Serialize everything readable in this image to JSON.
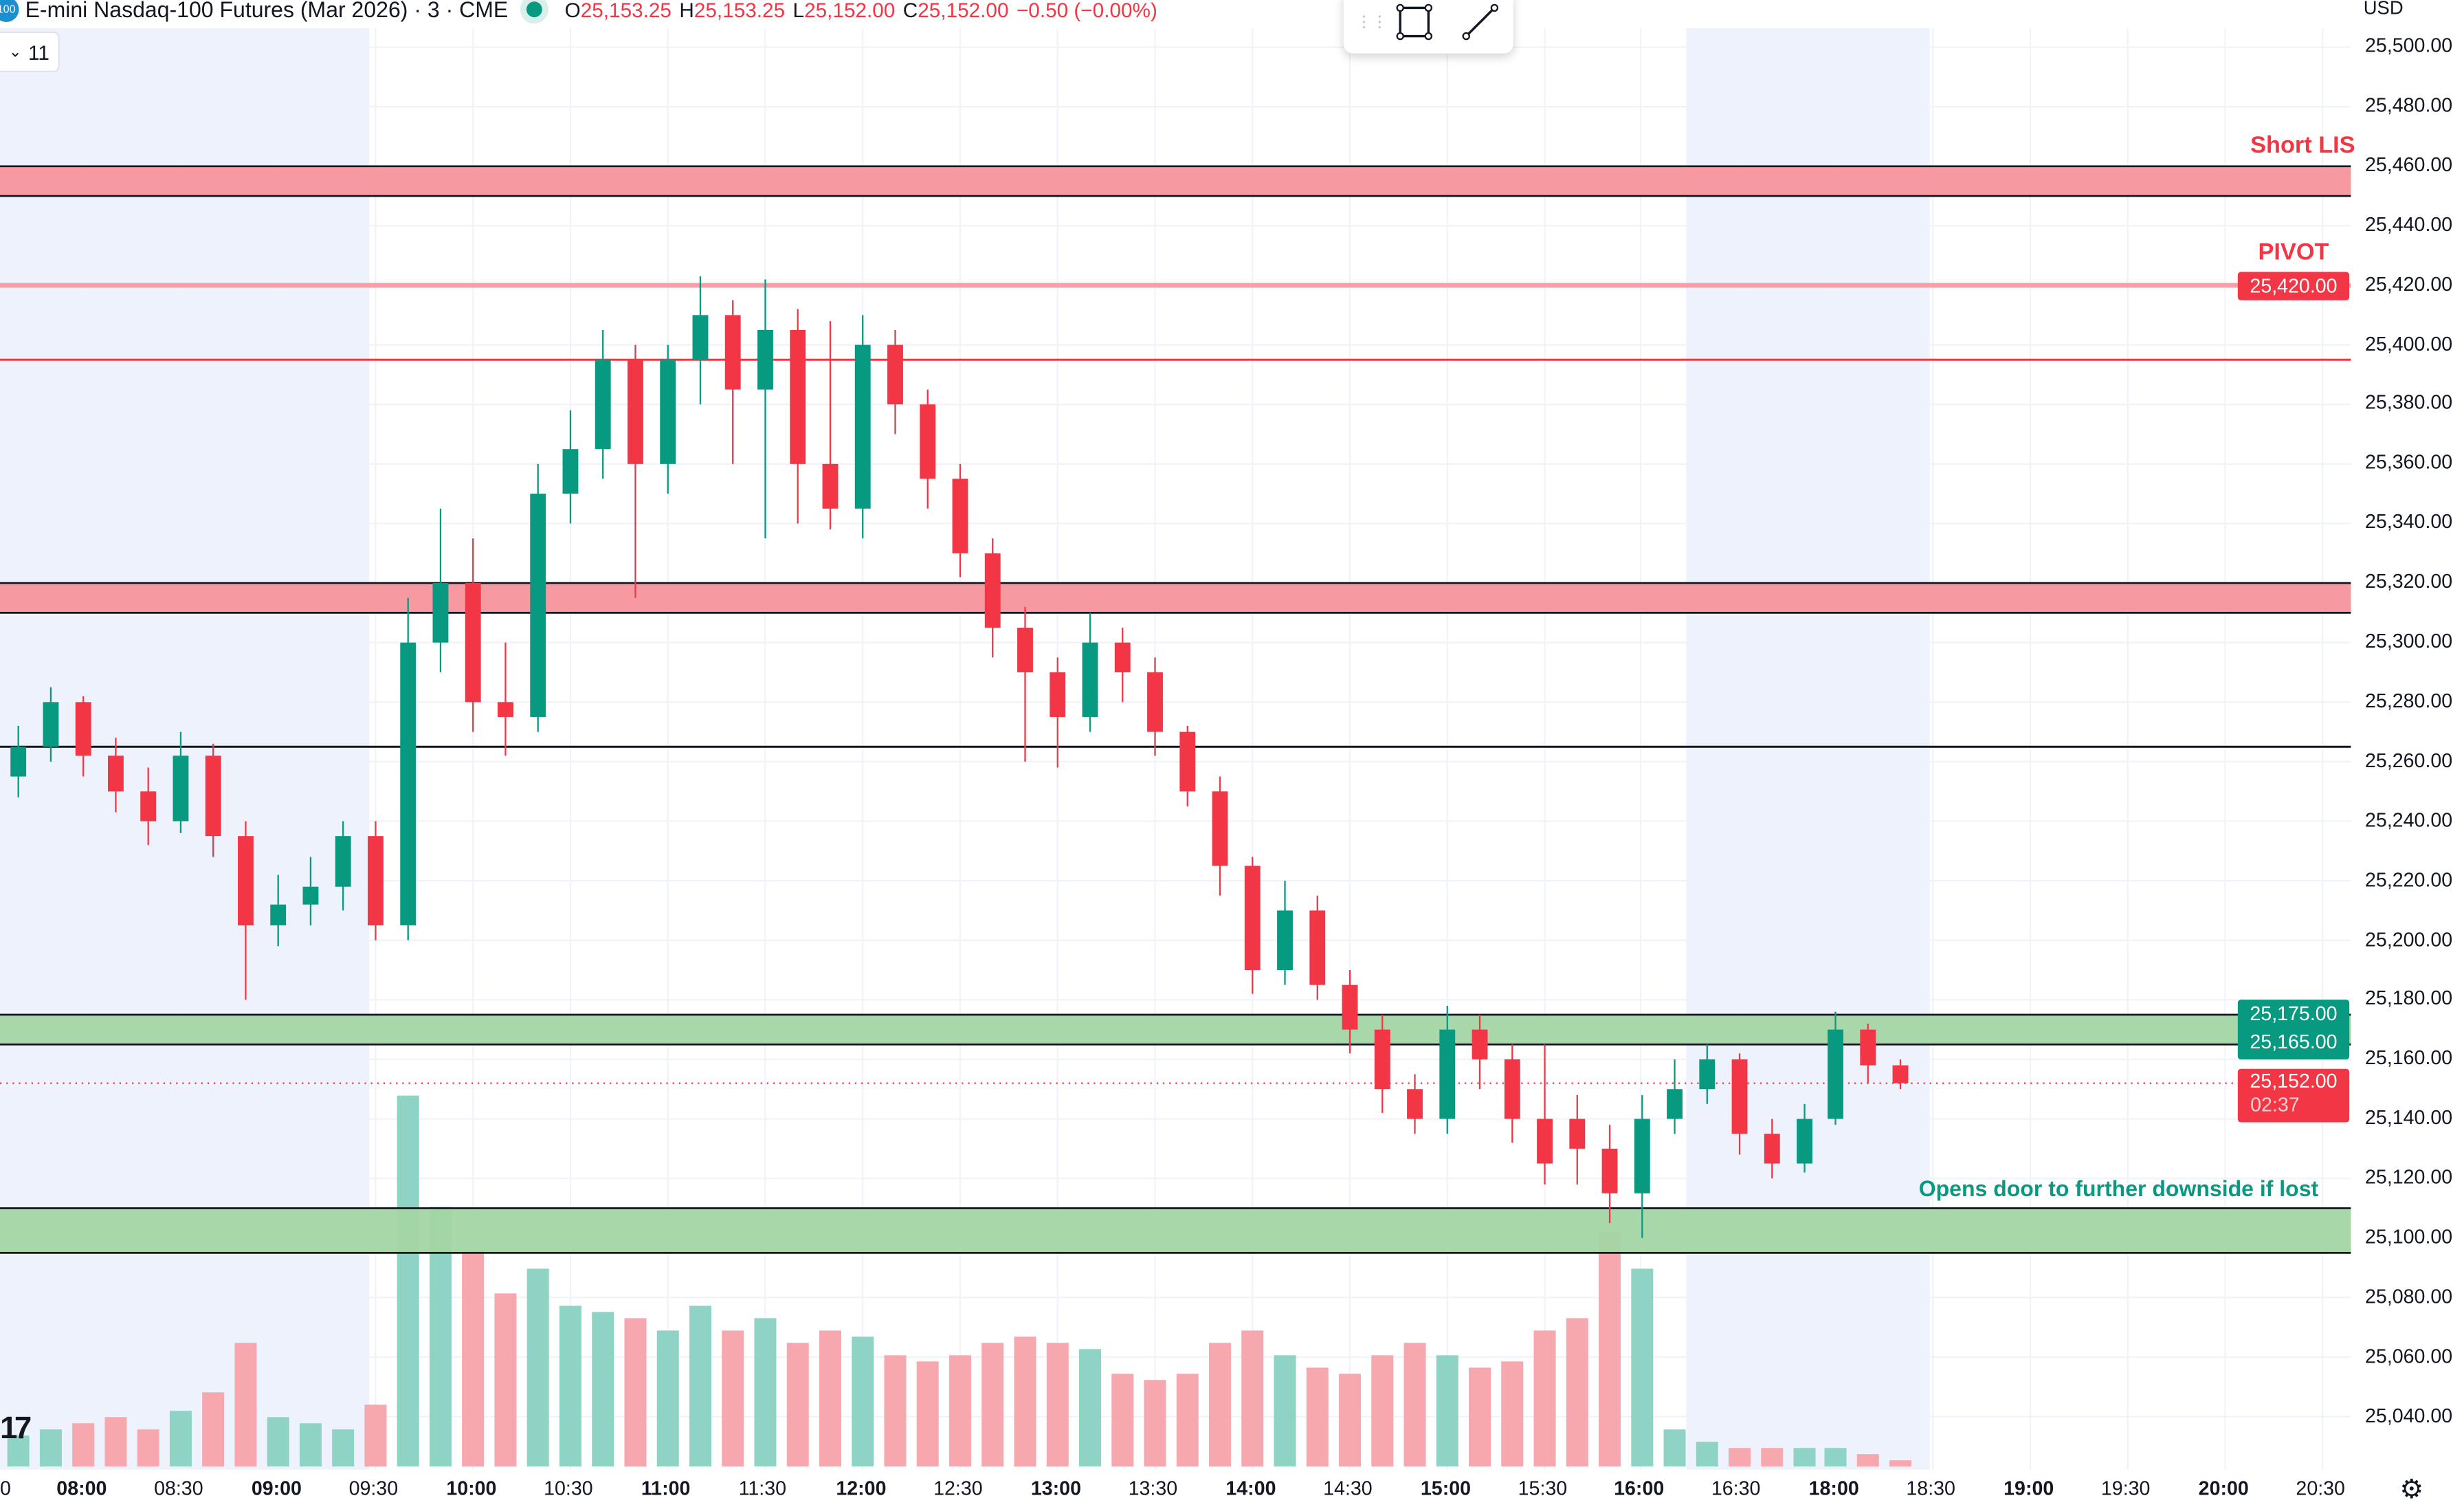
{
  "header": {
    "symbol_badge": "100",
    "title": "E-mini Nasdaq-100 Futures (Mar 2026) · 3 · CME",
    "ohlc": {
      "o_label": "O",
      "o": "25,153.25",
      "h_label": "H",
      "h": "25,153.25",
      "l_label": "L",
      "l": "25,152.00",
      "c_label": "C",
      "c": "25,152.00",
      "change": "−0.50 (−0.00%)"
    },
    "collapsed_indicators": "11"
  },
  "currency": "USD",
  "colors": {
    "up": "#089981",
    "down": "#f23645",
    "up_volume": "#8fd3c5",
    "down_volume": "#f7a8ae",
    "red_zone": "#f5949c",
    "green_zone": "#a3d6a4",
    "session_shade": "#eef2fd"
  },
  "annotations": {
    "short_lis": "Short LIS",
    "pivot": "PIVOT",
    "downside_note": "Opens door to further downside if lost"
  },
  "price_badges": {
    "pivot": "25,420.00",
    "green_top": "25,175.00",
    "green_bottom": "25,165.00",
    "last": "25,152.00",
    "countdown": "02:37"
  },
  "chart_data": {
    "type": "candlestick",
    "title": "E-mini Nasdaq-100 Futures (Mar 2026) · 3 · CME",
    "ylim": [
      25030,
      25505
    ],
    "y_ticks": [
      "25,500.00",
      "25,480.00",
      "25,460.00",
      "25,440.00",
      "25,420.00",
      "25,400.00",
      "25,380.00",
      "25,360.00",
      "25,340.00",
      "25,320.00",
      "25,300.00",
      "25,280.00",
      "25,260.00",
      "25,240.00",
      "25,220.00",
      "25,200.00",
      "25,180.00",
      "25,160.00",
      "25,140.00",
      "25,120.00",
      "25,100.00",
      "25,080.00",
      "25,060.00",
      "25,040.00"
    ],
    "x_ticks": [
      "0",
      "08:00",
      "08:30",
      "09:00",
      "09:30",
      "10:00",
      "10:30",
      "11:00",
      "11:30",
      "12:00",
      "12:30",
      "13:00",
      "13:30",
      "14:00",
      "14:30",
      "15:00",
      "15:30",
      "16:00",
      "16:30",
      "18:00",
      "18:30",
      "19:00",
      "19:30",
      "20:00",
      "20:30"
    ],
    "levels": [
      {
        "kind": "zone",
        "color": "red",
        "from": 25450,
        "to": 25460,
        "label": "Short LIS"
      },
      {
        "kind": "line",
        "color": "pink",
        "price": 25420,
        "label": "PIVOT"
      },
      {
        "kind": "line",
        "color": "red",
        "price": 25395
      },
      {
        "kind": "zone",
        "color": "red",
        "from": 25310,
        "to": 25320
      },
      {
        "kind": "line",
        "color": "black",
        "price": 25265
      },
      {
        "kind": "zone",
        "color": "green",
        "from": 25165,
        "to": 25175
      },
      {
        "kind": "zone",
        "color": "green",
        "from": 25095,
        "to": 25110,
        "label": "Opens door to further downside if lost"
      },
      {
        "kind": "last",
        "price": 25152
      }
    ],
    "candles": [
      [
        "07:40",
        25255,
        25272,
        25248,
        25265,
        5
      ],
      [
        "07:50",
        25265,
        25285,
        25260,
        25280,
        6
      ],
      [
        "08:00",
        25280,
        25282,
        25255,
        25262,
        7
      ],
      [
        "08:10",
        25262,
        25268,
        25243,
        25250,
        8
      ],
      [
        "08:20",
        25250,
        25258,
        25232,
        25240,
        6
      ],
      [
        "08:30",
        25240,
        25270,
        25236,
        25262,
        9
      ],
      [
        "08:40",
        25262,
        25266,
        25228,
        25235,
        12
      ],
      [
        "08:50",
        25235,
        25240,
        25180,
        25205,
        20
      ],
      [
        "09:00",
        25205,
        25222,
        25198,
        25212,
        8
      ],
      [
        "09:10",
        25212,
        25228,
        25205,
        25218,
        7
      ],
      [
        "09:20",
        25218,
        25240,
        25210,
        25235,
        6
      ],
      [
        "09:30",
        25235,
        25240,
        25200,
        25205,
        10
      ],
      [
        "09:40",
        25205,
        25315,
        25200,
        25300,
        60
      ],
      [
        "09:50",
        25300,
        25345,
        25290,
        25320,
        42
      ],
      [
        "10:00",
        25320,
        25335,
        25270,
        25280,
        35
      ],
      [
        "10:10",
        25280,
        25300,
        25262,
        25275,
        28
      ],
      [
        "10:20",
        25275,
        25360,
        25270,
        25350,
        32
      ],
      [
        "10:30",
        25350,
        25378,
        25340,
        25365,
        26
      ],
      [
        "10:40",
        25365,
        25405,
        25355,
        25395,
        25
      ],
      [
        "10:50",
        25395,
        25400,
        25315,
        25360,
        24
      ],
      [
        "11:00",
        25360,
        25400,
        25350,
        25395,
        22
      ],
      [
        "11:10",
        25395,
        25423,
        25380,
        25410,
        26
      ],
      [
        "11:20",
        25410,
        25415,
        25360,
        25385,
        22
      ],
      [
        "11:30",
        25385,
        25422,
        25335,
        25405,
        24
      ],
      [
        "11:40",
        25405,
        25412,
        25340,
        25360,
        20
      ],
      [
        "11:50",
        25360,
        25408,
        25338,
        25345,
        22
      ],
      [
        "12:00",
        25345,
        25410,
        25335,
        25400,
        21
      ],
      [
        "12:10",
        25400,
        25405,
        25370,
        25380,
        18
      ],
      [
        "12:20",
        25380,
        25385,
        25345,
        25355,
        17
      ],
      [
        "12:30",
        25355,
        25360,
        25322,
        25330,
        18
      ],
      [
        "12:40",
        25330,
        25335,
        25295,
        25305,
        20
      ],
      [
        "12:50",
        25305,
        25312,
        25260,
        25290,
        21
      ],
      [
        "13:00",
        25290,
        25295,
        25258,
        25275,
        20
      ],
      [
        "13:10",
        25275,
        25310,
        25270,
        25300,
        19
      ],
      [
        "13:20",
        25300,
        25305,
        25280,
        25290,
        15
      ],
      [
        "13:30",
        25290,
        25295,
        25262,
        25270,
        14
      ],
      [
        "13:40",
        25270,
        25272,
        25245,
        25250,
        15
      ],
      [
        "13:50",
        25250,
        25255,
        25215,
        25225,
        20
      ],
      [
        "14:00",
        25225,
        25228,
        25182,
        25190,
        22
      ],
      [
        "14:10",
        25190,
        25220,
        25185,
        25210,
        18
      ],
      [
        "14:20",
        25210,
        25215,
        25180,
        25185,
        16
      ],
      [
        "14:30",
        25185,
        25190,
        25162,
        25170,
        15
      ],
      [
        "14:40",
        25170,
        25175,
        25142,
        25150,
        18
      ],
      [
        "14:50",
        25150,
        25155,
        25135,
        25140,
        20
      ],
      [
        "15:00",
        25140,
        25178,
        25135,
        25170,
        18
      ],
      [
        "15:10",
        25170,
        25175,
        25150,
        25160,
        16
      ],
      [
        "15:20",
        25160,
        25165,
        25132,
        25140,
        17
      ],
      [
        "15:30",
        25140,
        25165,
        25118,
        25125,
        22
      ],
      [
        "15:40",
        25140,
        25148,
        25118,
        25130,
        24
      ],
      [
        "15:50",
        25130,
        25138,
        25105,
        25115,
        38
      ],
      [
        "16:00",
        25115,
        25148,
        25100,
        25140,
        32
      ],
      [
        "16:10",
        25140,
        25160,
        25135,
        25150,
        6
      ],
      [
        "16:20",
        25150,
        25165,
        25145,
        25160,
        4
      ],
      [
        "16:30",
        25160,
        25162,
        25128,
        25135,
        3
      ],
      [
        "16:40",
        25135,
        25140,
        25120,
        25125,
        3
      ],
      [
        "16:50",
        25125,
        25145,
        25122,
        25140,
        3
      ],
      [
        "18:00",
        25140,
        25176,
        25138,
        25170,
        3
      ],
      [
        "18:10",
        25170,
        25172,
        25152,
        25158,
        2
      ],
      [
        "18:20",
        25158,
        25160,
        25150,
        25152,
        1
      ]
    ]
  }
}
